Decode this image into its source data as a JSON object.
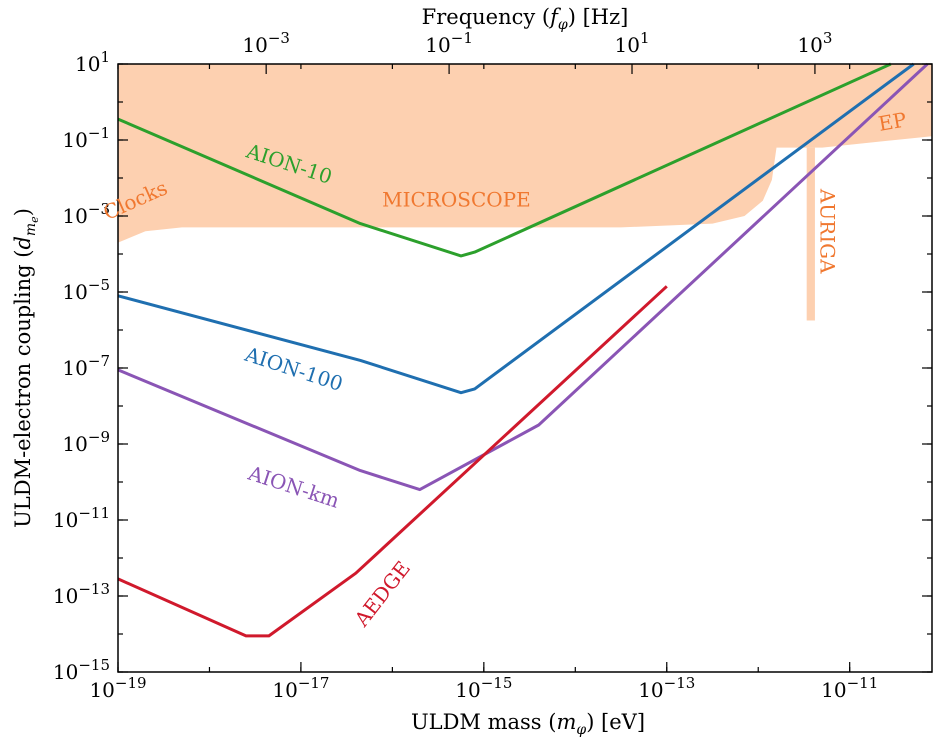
{
  "chart_data": {
    "type": "line",
    "title": "",
    "xlabel": "ULDM mass (mφ) [eV]",
    "xlabel_parts": {
      "pre": "ULDM mass (",
      "sym": "m",
      "sub": "φ",
      "post": ") [eV]"
    },
    "ylabel": "ULDM-electron coupling (d_me)",
    "ylabel_parts": {
      "pre": "ULDM-electron coupling (",
      "sym": "d",
      "sub": "m",
      "subsub": "e",
      "post": ")"
    },
    "top_xlabel": "Frequency (fφ) [Hz]",
    "top_xlabel_parts": {
      "pre": "Frequency (",
      "sym": "f",
      "sub": "φ",
      "post": ") [Hz]"
    },
    "x_scale": "log",
    "y_scale": "log",
    "xlim_log10": [
      -19,
      -10.1
    ],
    "ylim_log10": [
      -15,
      1
    ],
    "x_ticks": [
      {
        "base": "10",
        "exp": "−19",
        "log": -19
      },
      {
        "base": "10",
        "exp": "−17",
        "log": -17
      },
      {
        "base": "10",
        "exp": "−15",
        "log": -15
      },
      {
        "base": "10",
        "exp": "−13",
        "log": -13
      },
      {
        "base": "10",
        "exp": "−11",
        "log": -11
      }
    ],
    "y_ticks": [
      {
        "base": "10",
        "exp": "1",
        "log": 1
      },
      {
        "base": "10",
        "exp": "−1",
        "log": -1
      },
      {
        "base": "10",
        "exp": "−3",
        "log": -3
      },
      {
        "base": "10",
        "exp": "−5",
        "log": -5
      },
      {
        "base": "10",
        "exp": "−7",
        "log": -7
      },
      {
        "base": "10",
        "exp": "−9",
        "log": -9
      },
      {
        "base": "10",
        "exp": "−11",
        "log": -11
      },
      {
        "base": "10",
        "exp": "−13",
        "log": -13
      },
      {
        "base": "10",
        "exp": "−15",
        "log": -15
      }
    ],
    "top_ticks": [
      {
        "base": "10",
        "exp": "−3",
        "log": -3
      },
      {
        "base": "10",
        "exp": "−1",
        "log": -1
      },
      {
        "base": "10",
        "exp": "1",
        "log": 1
      },
      {
        "base": "10",
        "exp": "3",
        "log": 3
      }
    ],
    "top_axis_mass_offset_log10": -14.38,
    "excluded_region": {
      "color": "#fdd0b0",
      "upper_log10": 1,
      "boundary": [
        [
          -19,
          -3.7
        ],
        [
          -18.7,
          -3.4
        ],
        [
          -18.3,
          -3.3
        ],
        [
          -17.5,
          -3.3
        ],
        [
          -16.5,
          -3.3
        ],
        [
          -15.5,
          -3.3
        ],
        [
          -14.5,
          -3.3
        ],
        [
          -13.5,
          -3.3
        ],
        [
          -12.5,
          -3.2
        ],
        [
          -12.15,
          -3.0
        ],
        [
          -11.95,
          -2.6
        ],
        [
          -11.85,
          -2.05
        ],
        [
          -11.8,
          -1.2
        ],
        [
          -11.3,
          -1.2
        ],
        [
          -10.1,
          -0.9
        ]
      ],
      "auriga_band": {
        "x_log10": [
          -11.47,
          -11.38
        ],
        "y_log10": [
          -5.75,
          -1.2
        ]
      }
    },
    "exclusion_labels": [
      {
        "text": "Clocks",
        "x_log10": -18.78,
        "y_log10": -2.75,
        "rotate": -24
      },
      {
        "text": "MICROSCOPE",
        "x_log10": -15.3,
        "y_log10": -2.75,
        "rotate": 0
      },
      {
        "text": "AURIGA",
        "x_log10": -11.32,
        "y_log10": -3.4,
        "rotate": 90
      },
      {
        "text": "EP",
        "x_log10": -10.52,
        "y_log10": -0.7,
        "rotate": -10
      }
    ],
    "series": [
      {
        "name": "AION-10",
        "color": "#2ca02c",
        "points": [
          [
            -19,
            -0.45
          ],
          [
            -16.35,
            -3.2
          ],
          [
            -15.25,
            -4.05
          ],
          [
            -15.1,
            -3.95
          ],
          [
            -10.55,
            1
          ]
        ],
        "label": {
          "x_log10": -17.15,
          "y_log10": -1.8,
          "rotate": 18
        }
      },
      {
        "name": "AION-100",
        "color": "#1f6fb0",
        "points": [
          [
            -19,
            -5.1
          ],
          [
            -16.35,
            -6.8
          ],
          [
            -15.25,
            -7.65
          ],
          [
            -15.1,
            -7.55
          ],
          [
            -10.3,
            1
          ]
        ],
        "label": {
          "x_log10": -17.1,
          "y_log10": -7.2,
          "rotate": 18
        }
      },
      {
        "name": "AION-km",
        "color": "#8a55b5",
        "points": [
          [
            -19,
            -7.05
          ],
          [
            -16.35,
            -9.7
          ],
          [
            -15.7,
            -10.2
          ],
          [
            -14.4,
            -8.5
          ],
          [
            -10.15,
            1
          ]
        ],
        "label": {
          "x_log10": -17.1,
          "y_log10": -10.3,
          "rotate": 18
        }
      },
      {
        "name": "AEDGE",
        "color": "#d0192c",
        "points": [
          [
            -19,
            -12.55
          ],
          [
            -17.6,
            -14.05
          ],
          [
            -17.4,
            -14.05
          ],
          [
            -17.35,
            -14.05
          ],
          [
            -16.4,
            -12.4
          ],
          [
            -13.0,
            -4.85
          ]
        ],
        "label": {
          "x_log10": -16.05,
          "y_log10": -13.05,
          "rotate": -52
        }
      }
    ]
  }
}
